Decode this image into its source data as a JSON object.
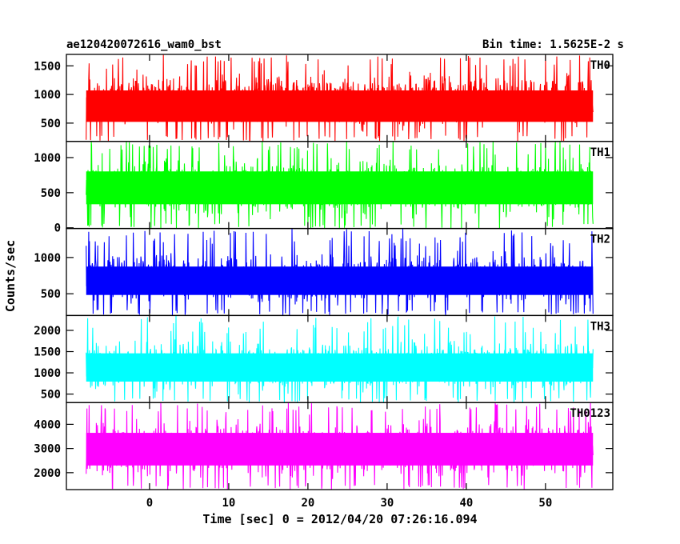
{
  "header": {
    "title": "ae120420072616_wam0_bst",
    "bin_time": "Bin time: 1.5625E-2 s"
  },
  "chart_data": {
    "type": "line",
    "title": "ae120420072616_wam0_bst",
    "subtitle": "Bin time: 1.5625E-2 s",
    "xlabel": "Time [sec] 0 = 2012/04/20 07:26:16.094",
    "ylabel": "Counts/sec",
    "xlim": [
      -8,
      56
    ],
    "data_x_range": [
      -8,
      56
    ],
    "x_ticks": [
      0,
      10,
      20,
      30,
      40,
      50
    ],
    "grid": false,
    "legend": "panel labels top-right",
    "panels": [
      {
        "name": "TH0",
        "color": "#ff0000",
        "ylim": [
          180,
          1700
        ],
        "y_ticks": [
          500,
          1000,
          1500
        ],
        "mean": 720,
        "low": 280,
        "high": 1500,
        "spike": 1700,
        "seed": 11
      },
      {
        "name": "TH1",
        "color": "#00ff00",
        "ylim": [
          -10,
          1230
        ],
        "y_ticks": [
          0,
          500,
          1000
        ],
        "mean": 560,
        "low": 60,
        "high": 1100,
        "spike": 1230,
        "seed": 23
      },
      {
        "name": "TH2",
        "color": "#0000ff",
        "ylim": [
          200,
          1400
        ],
        "y_ticks": [
          500,
          1000
        ],
        "mean": 650,
        "low": 280,
        "high": 1150,
        "spike": 1400,
        "seed": 37
      },
      {
        "name": "TH3",
        "color": "#00ffff",
        "ylim": [
          300,
          2350
        ],
        "y_ticks": [
          500,
          1000,
          1500,
          2000
        ],
        "mean": 1100,
        "low": 420,
        "high": 1900,
        "spike": 2350,
        "seed": 41
      },
      {
        "name": "TH0123",
        "color": "#ff00ff",
        "ylim": [
          1300,
          4900
        ],
        "y_ticks": [
          2000,
          3000,
          4000
        ],
        "mean": 2950,
        "low": 1500,
        "high": 4500,
        "spike": 4900,
        "seed": 53
      }
    ]
  }
}
